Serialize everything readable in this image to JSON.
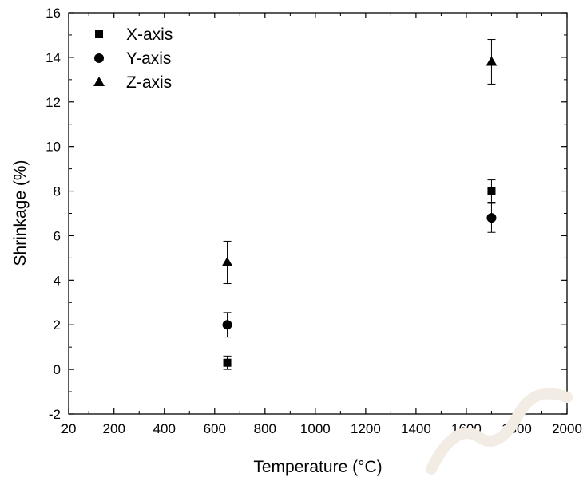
{
  "chart_data": {
    "type": "scatter",
    "title": "",
    "xlabel": "Temperature (°C)",
    "ylabel": "Shrinkage (%)",
    "xlim": [
      20,
      2000
    ],
    "ylim": [
      -2,
      16
    ],
    "x_ticks": [
      20,
      200,
      400,
      600,
      800,
      1000,
      1200,
      1400,
      1600,
      1800,
      2000
    ],
    "y_ticks": [
      -2,
      0,
      2,
      4,
      6,
      8,
      10,
      12,
      14,
      16
    ],
    "x_tick_labels": [
      "20",
      "200",
      "400",
      "600",
      "800",
      "1000",
      "1200",
      "1400",
      "1600",
      "1800",
      "2000"
    ],
    "y_tick_labels": [
      "-2",
      "0",
      "2",
      "4",
      "6",
      "8",
      "10",
      "12",
      "14",
      "16"
    ],
    "grid": false,
    "legend_position": "top-left",
    "error_bars": true,
    "series": [
      {
        "name": "X-axis",
        "marker": "square",
        "points": [
          {
            "x": 650,
            "y": 0.3,
            "err": 0.3
          },
          {
            "x": 1700,
            "y": 8.0,
            "err": 0.5
          }
        ]
      },
      {
        "name": "Y-axis",
        "marker": "circle",
        "points": [
          {
            "x": 650,
            "y": 2.0,
            "err": 0.55
          },
          {
            "x": 1700,
            "y": 6.8,
            "err": 0.65
          }
        ]
      },
      {
        "name": "Z-axis",
        "marker": "triangle",
        "points": [
          {
            "x": 650,
            "y": 4.8,
            "err": 0.95
          },
          {
            "x": 1700,
            "y": 13.8,
            "err": 1.0
          }
        ]
      }
    ]
  }
}
